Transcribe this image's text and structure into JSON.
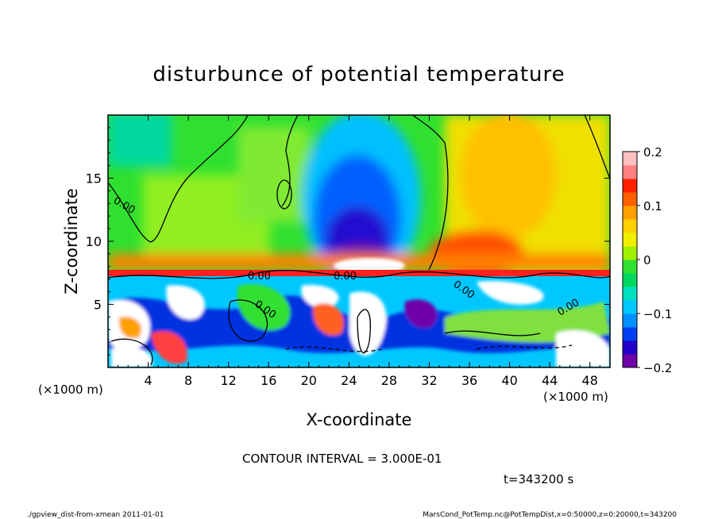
{
  "chart_data": {
    "type": "heatmap",
    "title": "disturbunce of potential temperature",
    "xlabel": "X-coordinate",
    "ylabel": "Z-coordinate",
    "x_unit": "(×1000 m)",
    "z_unit": "(×1000 m)",
    "xlim": [
      0,
      50
    ],
    "ylim": [
      0,
      20
    ],
    "x_ticks": [
      "4",
      "8",
      "12",
      "16",
      "20",
      "24",
      "28",
      "32",
      "36",
      "40",
      "44",
      "48"
    ],
    "y_ticks": [
      "5",
      "10",
      "15"
    ],
    "colorbar": {
      "range": [
        -0.2,
        0.2
      ],
      "tick_labels": [
        "0.2",
        "0.1",
        "0",
        "−0.1",
        "−0.2"
      ],
      "colors": [
        "#7000a8",
        "#2000c8",
        "#0040f0",
        "#0090ff",
        "#00c8ff",
        "#00e0c0",
        "#00d860",
        "#30e030",
        "#a0f000",
        "#f0f000",
        "#ffd000",
        "#ffa000",
        "#ff6000",
        "#ff2000",
        "#ff8080",
        "#ffc0c0"
      ]
    },
    "contour_labels": [
      "0.00",
      "0.00",
      "0.00",
      "0.00",
      "0.00",
      "0.00"
    ],
    "contour_interval": "CONTOUR INTERVAL = 3.000E-01",
    "time": "t=343200 s"
  },
  "footer": {
    "left": "./gpview_dist-from-xmean  2011-01-01",
    "right": "MarsCond_PotTemp.nc@PotTempDist,x=0:50000,z=0:20000,t=343200"
  }
}
